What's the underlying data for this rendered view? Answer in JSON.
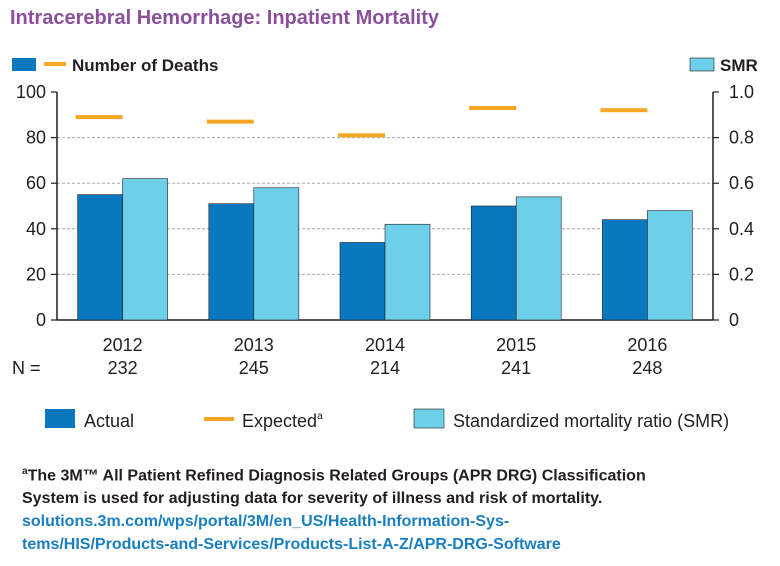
{
  "title": "Intracerebral Hemorrhage: Inpatient Mortality",
  "colors": {
    "actual": "#0a78be",
    "expected": "#f5a623",
    "smr": "#6ecfe8",
    "title": "#8b4f9c",
    "link": "#1a7fc1",
    "grid": "#a7a9ac"
  },
  "chart_data": {
    "type": "bar",
    "title": "Intracerebral Hemorrhage: Inpatient Mortality",
    "categories": [
      "2012",
      "2013",
      "2014",
      "2015",
      "2016"
    ],
    "n_label": "N =",
    "n_values": [
      "232",
      "245",
      "214",
      "241",
      "248"
    ],
    "left_axis": {
      "label": "Number of Deaths",
      "ylim": [
        0,
        100
      ],
      "ticks": [
        "0",
        "20",
        "40",
        "60",
        "80",
        "100"
      ]
    },
    "right_axis": {
      "label": "SMR",
      "ylim": [
        0,
        1.0
      ],
      "ticks": [
        "0",
        "0.2",
        "0.4",
        "0.6",
        "0.8",
        "1.0"
      ]
    },
    "grid": true,
    "series": [
      {
        "name": "Actual",
        "axis": "left",
        "mark": "bar",
        "values": [
          55,
          51,
          34,
          50,
          44
        ]
      },
      {
        "name": "Expected",
        "axis": "left",
        "mark": "dash",
        "values": [
          89,
          87,
          81,
          93,
          92
        ]
      },
      {
        "name": "Standardized mortality ratio (SMR)",
        "axis": "right",
        "mark": "bar",
        "values": [
          0.62,
          0.58,
          0.42,
          0.54,
          0.48
        ]
      }
    ],
    "legend": {
      "placement": "bottom",
      "actual": "Actual",
      "expected": "Expected",
      "expected_sup": "a",
      "smr": "Standardized mortality ratio (SMR)"
    }
  },
  "footnote": {
    "marker": "a",
    "text_line1": "The 3M™ All Patient Refined Diagnosis Related Groups (APR DRG) Classification",
    "text_line2": "System is used for adjusting data for severity of illness and risk of mortality.",
    "link_line1": "solutions.3m.com/wps/portal/3M/en_US/Health-Information-Sys-",
    "link_line2": "tems/HIS/Products-and-Services/Products-List-A-Z/APR-DRG-Software"
  }
}
